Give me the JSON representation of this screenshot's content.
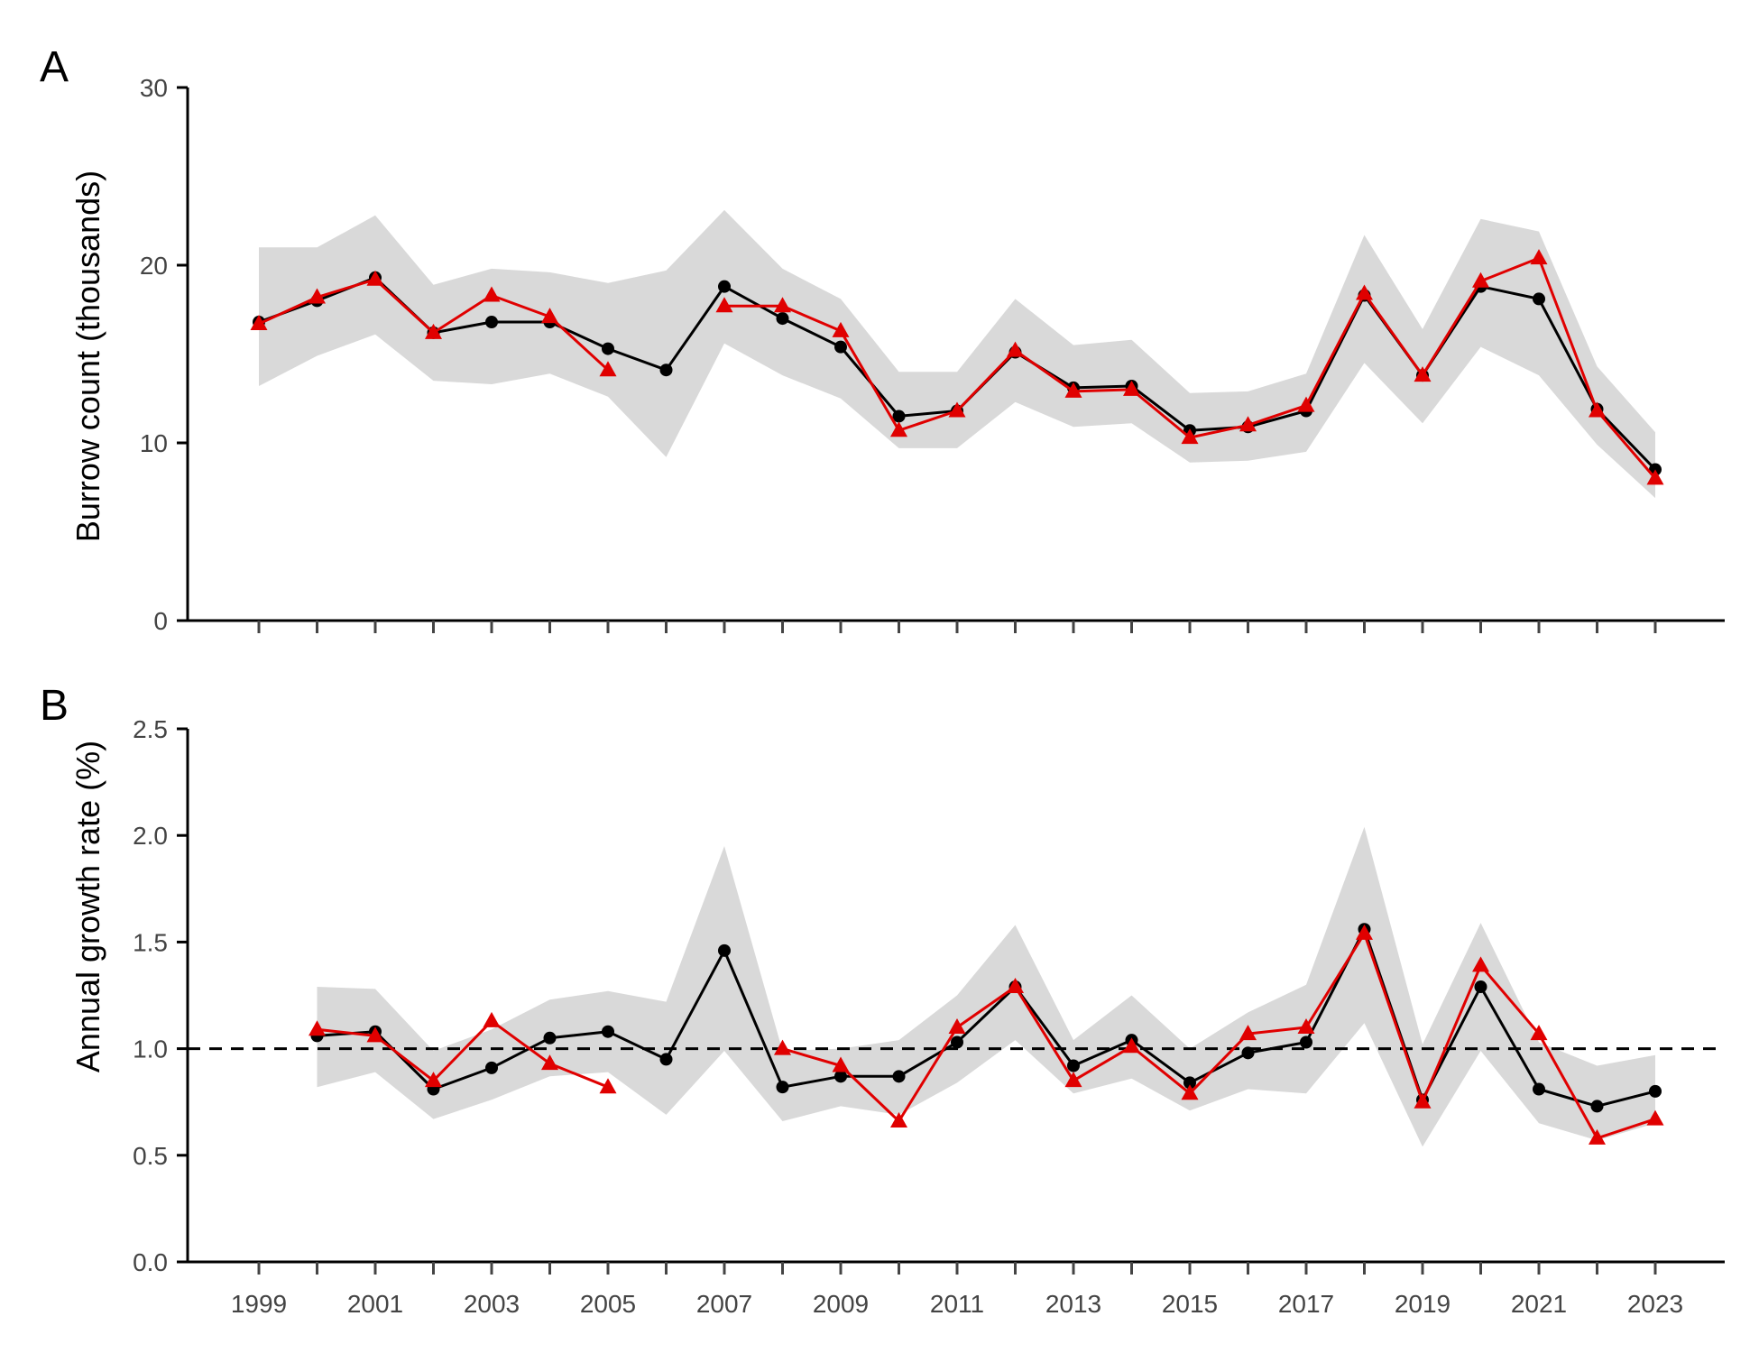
{
  "chart_data": [
    {
      "panel": "A",
      "type": "line",
      "ylabel": "Burrow count (thousands)",
      "xlabel": "",
      "ylim": [
        0,
        30
      ],
      "yticks": [
        "0",
        "10",
        "20",
        "30"
      ],
      "x": [
        1999,
        2000,
        2001,
        2002,
        2003,
        2004,
        2005,
        2006,
        2007,
        2008,
        2009,
        2010,
        2011,
        2012,
        2013,
        2014,
        2015,
        2016,
        2017,
        2018,
        2019,
        2020,
        2021,
        2022,
        2023
      ],
      "band": {
        "upper": [
          21.0,
          21.0,
          22.8,
          18.9,
          19.8,
          19.6,
          19.0,
          19.7,
          23.1,
          19.8,
          18.1,
          14.0,
          14.0,
          18.1,
          15.5,
          15.8,
          12.8,
          12.9,
          13.9,
          21.7,
          16.4,
          22.6,
          21.9,
          14.3,
          10.6
        ],
        "lower": [
          13.2,
          14.9,
          16.1,
          13.5,
          13.3,
          13.9,
          12.6,
          9.2,
          15.6,
          13.8,
          12.5,
          9.7,
          9.7,
          12.3,
          10.9,
          11.1,
          8.9,
          9.0,
          9.5,
          14.5,
          11.1,
          15.4,
          13.8,
          9.9,
          6.9
        ]
      },
      "series": [
        {
          "color": "#000000",
          "marker": "circle",
          "values": [
            16.8,
            18.0,
            19.3,
            16.2,
            16.8,
            16.8,
            15.3,
            14.1,
            18.8,
            17.0,
            15.4,
            11.5,
            11.8,
            15.1,
            13.1,
            13.2,
            10.7,
            10.9,
            11.8,
            18.3,
            13.8,
            18.8,
            18.1,
            11.9,
            8.5
          ]
        },
        {
          "color": "#e00000",
          "marker": "triangle",
          "values": [
            16.7,
            18.2,
            19.2,
            16.2,
            18.3,
            17.1,
            14.1,
            null,
            17.7,
            17.7,
            16.3,
            10.7,
            11.8,
            15.2,
            12.9,
            13.0,
            10.3,
            11.0,
            12.1,
            18.4,
            13.8,
            19.1,
            20.4,
            11.8,
            8.0
          ]
        }
      ]
    },
    {
      "panel": "B",
      "type": "line",
      "ylabel": "Annual growth rate (%)",
      "xlabel": "",
      "ylim": [
        0,
        2.5
      ],
      "yticks": [
        "0.0",
        "0.5",
        "1.0",
        "1.5",
        "2.0",
        "2.5"
      ],
      "reference_line": 1.0,
      "x": [
        1999,
        2000,
        2001,
        2002,
        2003,
        2004,
        2005,
        2006,
        2007,
        2008,
        2009,
        2010,
        2011,
        2012,
        2013,
        2014,
        2015,
        2016,
        2017,
        2018,
        2019,
        2020,
        2021,
        2022,
        2023
      ],
      "xticklabels": [
        "1999",
        "2001",
        "2003",
        "2005",
        "2007",
        "2009",
        "2011",
        "2013",
        "2015",
        "2017",
        "2019",
        "2021",
        "2023"
      ],
      "band": {
        "upper": [
          null,
          1.29,
          1.28,
          0.99,
          1.09,
          1.23,
          1.27,
          1.22,
          1.95,
          0.99,
          1.0,
          1.04,
          1.25,
          1.58,
          1.04,
          1.25,
          1.0,
          1.17,
          1.3,
          2.04,
          1.02,
          1.59,
          1.03,
          0.92,
          0.97
        ],
        "lower": [
          null,
          0.82,
          0.89,
          0.67,
          0.76,
          0.87,
          0.89,
          0.69,
          0.99,
          0.66,
          0.73,
          0.69,
          0.84,
          1.04,
          0.79,
          0.86,
          0.71,
          0.81,
          0.79,
          1.12,
          0.54,
          0.99,
          0.65,
          0.57,
          0.65
        ]
      },
      "series": [
        {
          "color": "#000000",
          "marker": "circle",
          "values": [
            null,
            1.06,
            1.08,
            0.81,
            0.91,
            1.05,
            1.08,
            0.95,
            1.46,
            0.82,
            0.87,
            0.87,
            1.03,
            1.29,
            0.92,
            1.04,
            0.84,
            0.98,
            1.03,
            1.56,
            0.76,
            1.29,
            0.81,
            0.73,
            0.8
          ]
        },
        {
          "color": "#e00000",
          "marker": "triangle",
          "values": [
            null,
            1.09,
            1.06,
            0.85,
            1.13,
            0.93,
            0.82,
            null,
            null,
            1.0,
            0.92,
            0.66,
            1.1,
            1.29,
            0.85,
            1.01,
            0.79,
            1.07,
            1.1,
            1.54,
            0.75,
            1.39,
            1.07,
            0.58,
            0.67
          ]
        }
      ]
    }
  ],
  "colors": {
    "band": "#d9d9d9",
    "axis": "#000000",
    "ticklabel": "#444444"
  }
}
